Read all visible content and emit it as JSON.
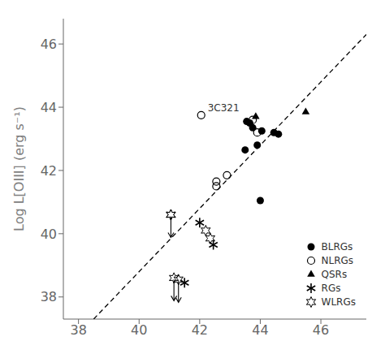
{
  "chart_data": {
    "type": "scatter",
    "ylabel": "Log L[OIII] (erg s⁻¹)",
    "xlim": [
      37.5,
      47.5
    ],
    "xticks": [
      38,
      40,
      42,
      44,
      46
    ],
    "ylim": [
      37.3,
      46.8
    ],
    "yticks": [
      38,
      40,
      42,
      44,
      46
    ],
    "grid": false,
    "legend": "lower right",
    "series": [
      {
        "type": "line",
        "line_style": "dashed",
        "color": "black",
        "values": [
          [
            38.5,
            37.3
          ],
          [
            47.5,
            46.3
          ]
        ]
      },
      {
        "name": "BLRGs",
        "marker": "circle",
        "color": "black",
        "values": [
          [
            43.55,
            43.55
          ],
          [
            43.65,
            43.5
          ],
          [
            43.75,
            43.35
          ],
          [
            44.05,
            43.25
          ],
          [
            44.45,
            43.2
          ],
          [
            44.6,
            43.15
          ],
          [
            43.9,
            42.8
          ],
          [
            43.5,
            42.65
          ],
          [
            44.0,
            41.05
          ]
        ]
      },
      {
        "name": "NLRGs",
        "marker": "circle_open",
        "color": "black",
        "values": [
          [
            42.05,
            43.75
          ],
          [
            43.75,
            43.6
          ],
          [
            43.9,
            43.2
          ],
          [
            42.9,
            41.85
          ],
          [
            42.55,
            41.65
          ],
          [
            42.55,
            41.5
          ]
        ]
      },
      {
        "name": "QSRs",
        "marker": "triangle",
        "color": "black",
        "values": [
          [
            43.85,
            43.7
          ],
          [
            45.5,
            43.85
          ]
        ]
      },
      {
        "name": "RGs",
        "marker": "asterisk",
        "color": "black",
        "values": [
          [
            42.0,
            40.35
          ],
          [
            42.45,
            39.65
          ],
          [
            41.5,
            38.45
          ]
        ]
      },
      {
        "name": "WLRGs",
        "marker": "star_open",
        "color": "black",
        "values": [
          [
            41.05,
            40.6
          ],
          [
            42.2,
            40.1
          ],
          [
            42.35,
            39.85
          ]
        ],
        "upper_limits": [
          [
            41.05,
            40.6
          ],
          [
            41.15,
            38.6
          ],
          [
            41.3,
            38.55
          ]
        ]
      }
    ],
    "annotations": [
      {
        "text": "3C321",
        "x": 42.05,
        "y": 43.75
      }
    ]
  }
}
